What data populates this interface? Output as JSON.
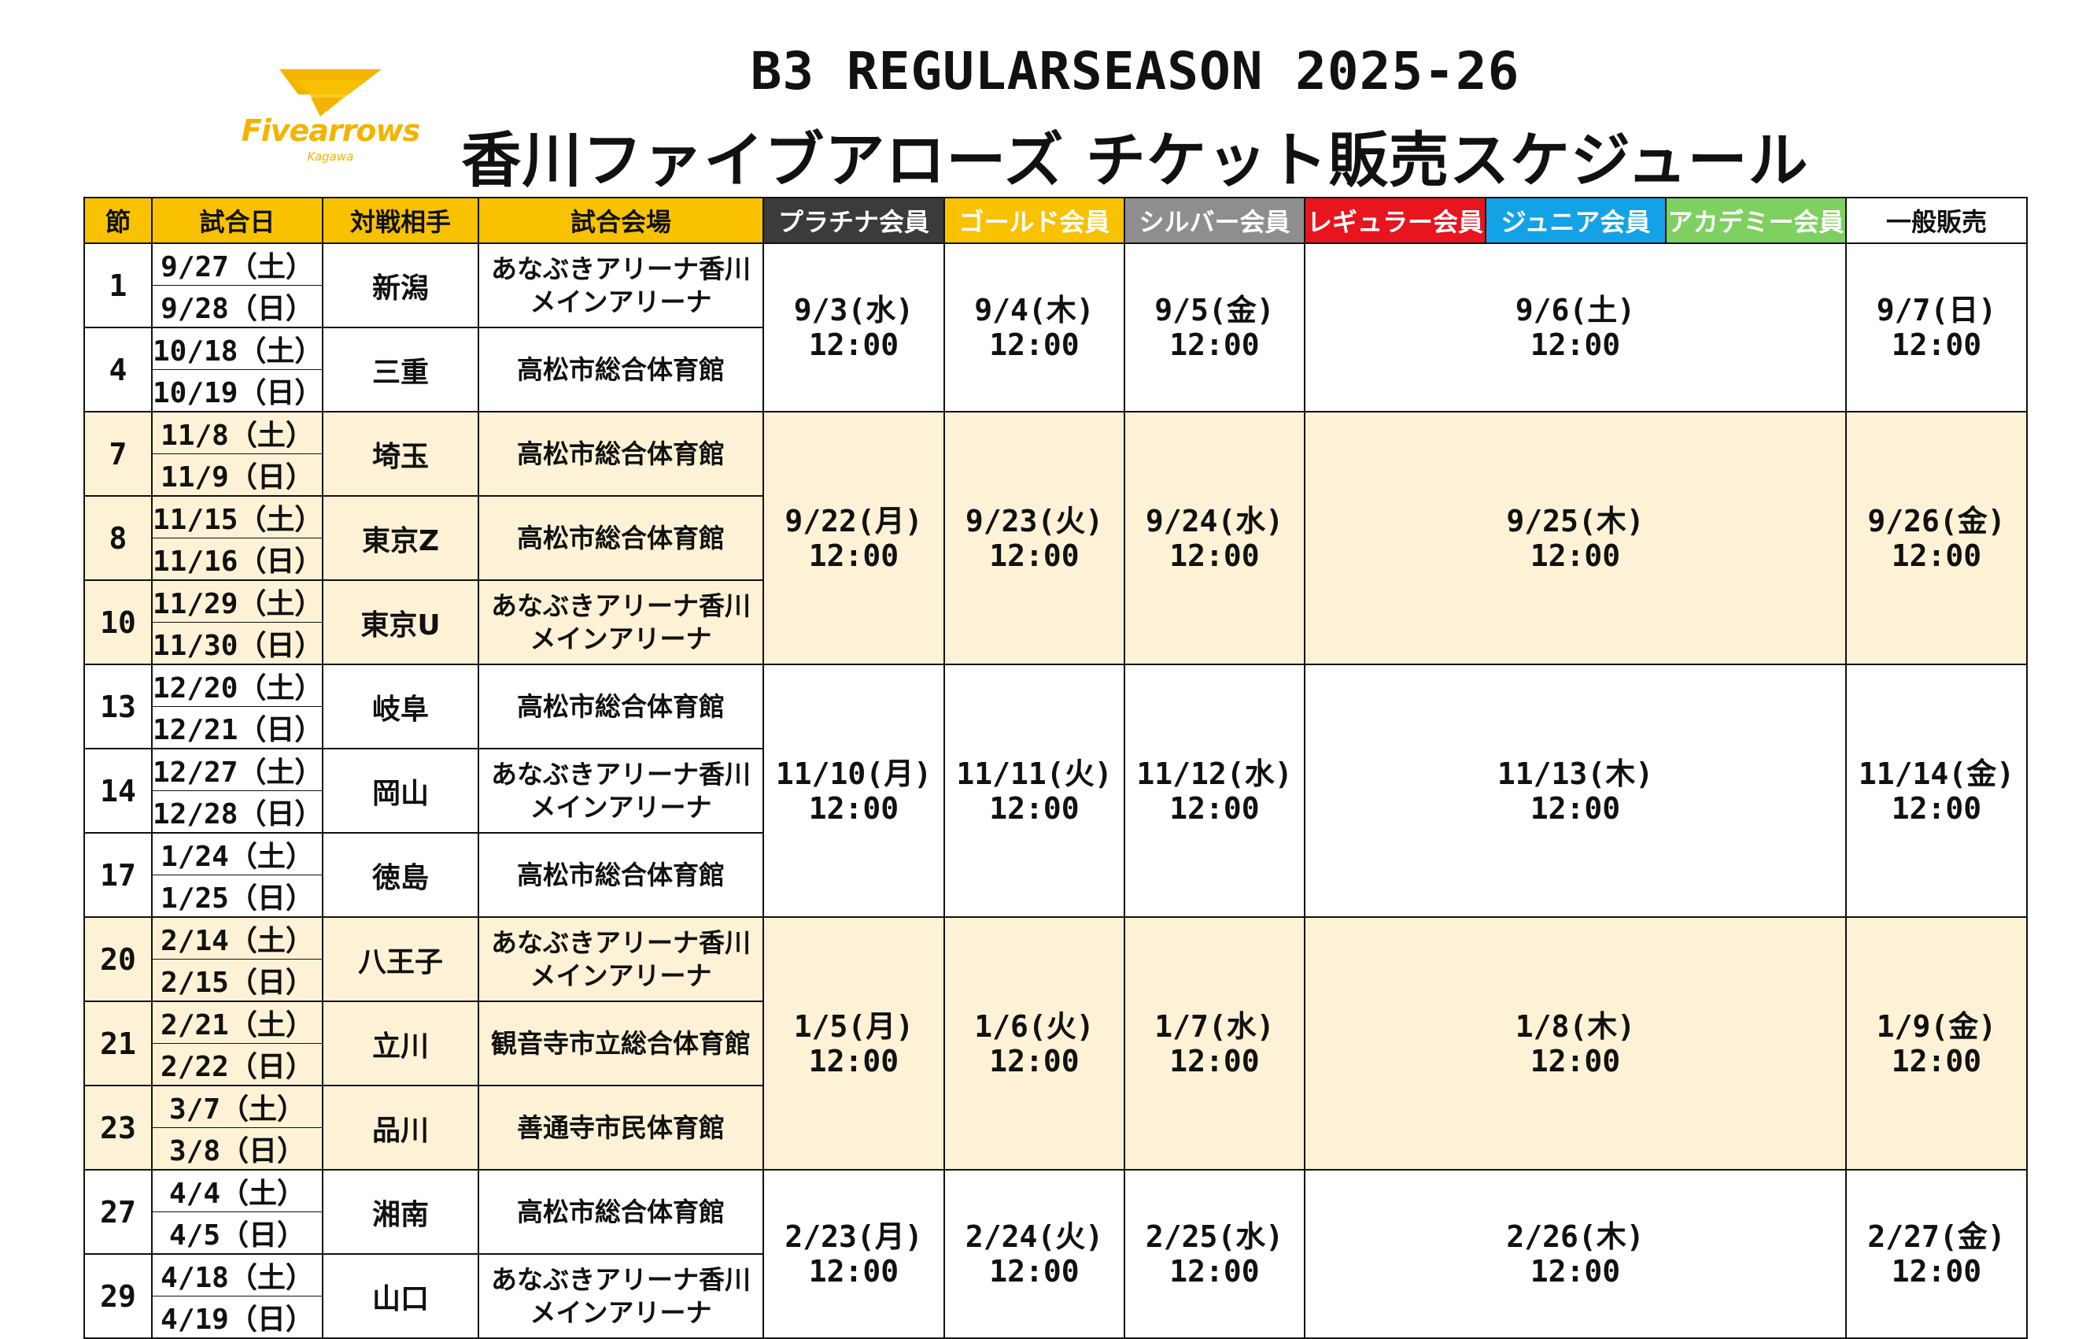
{
  "logo": {
    "name": "Fivearrows",
    "sub": "Kagawa",
    "color": "#f2b400"
  },
  "title_line1": "B3 REGULARSEASON 2025-26",
  "title_line2": "香川ファイブアローズ チケット販売スケジュール",
  "headers": [
    "節",
    "試合日",
    "対戦相手",
    "試合会場",
    "プラチナ会員",
    "ゴールド会員",
    "シルバー会員",
    "レギュラー会員",
    "ジュニア会員",
    "アカデミー会員",
    "一般販売"
  ],
  "header_colors": {
    "primary": "#f8c200",
    "platinum": "#3b3b3b",
    "gold": "#f8c200",
    "silver": "#8e8e8e",
    "regular": "#e8141e",
    "junior": "#14a2e6",
    "academy": "#7ed061",
    "general": "#ffffff",
    "alt_row": "#fdf2d6"
  },
  "games": [
    {
      "setsu": "1",
      "date1": "9/27（土）",
      "date2": "9/28（日）",
      "opponent": "新潟",
      "venue1": "あなぶきアリーナ香川",
      "venue2": "メインアリーナ"
    },
    {
      "setsu": "4",
      "date1": "10/18（土）",
      "date2": "10/19（日）",
      "opponent": "三重",
      "venue1": "高松市総合体育館",
      "venue2": ""
    },
    {
      "setsu": "7",
      "date1": "11/8（土）",
      "date2": "11/9（日）",
      "opponent": "埼玉",
      "venue1": "高松市総合体育館",
      "venue2": ""
    },
    {
      "setsu": "8",
      "date1": "11/15（土）",
      "date2": "11/16（日）",
      "opponent": "東京Z",
      "venue1": "高松市総合体育館",
      "venue2": ""
    },
    {
      "setsu": "10",
      "date1": "11/29（土）",
      "date2": "11/30（日）",
      "opponent": "東京U",
      "venue1": "あなぶきアリーナ香川",
      "venue2": "メインアリーナ"
    },
    {
      "setsu": "13",
      "date1": "12/20（土）",
      "date2": "12/21（日）",
      "opponent": "岐阜",
      "venue1": "高松市総合体育館",
      "venue2": ""
    },
    {
      "setsu": "14",
      "date1": "12/27（土）",
      "date2": "12/28（日）",
      "opponent": "岡山",
      "venue1": "あなぶきアリーナ香川",
      "venue2": "メインアリーナ"
    },
    {
      "setsu": "17",
      "date1": "1/24（土）",
      "date2": "1/25（日）",
      "opponent": "徳島",
      "venue1": "高松市総合体育館",
      "venue2": ""
    },
    {
      "setsu": "20",
      "date1": "2/14（土）",
      "date2": "2/15（日）",
      "opponent": "八王子",
      "venue1": "あなぶきアリーナ香川",
      "venue2": "メインアリーナ"
    },
    {
      "setsu": "21",
      "date1": "2/21（土）",
      "date2": "2/22（日）",
      "opponent": "立川",
      "venue1": "観音寺市立総合体育館",
      "venue2": ""
    },
    {
      "setsu": "23",
      "date1": "3/7（土）",
      "date2": "3/8（日）",
      "opponent": "品川",
      "venue1": "善通寺市民体育館",
      "venue2": ""
    },
    {
      "setsu": "27",
      "date1": "4/4（土）",
      "date2": "4/5（日）",
      "opponent": "湘南",
      "venue1": "高松市総合体育館",
      "venue2": ""
    },
    {
      "setsu": "29",
      "date1": "4/18（土）",
      "date2": "4/19（日）",
      "opponent": "山口",
      "venue1": "あなぶきアリーナ香川",
      "venue2": "メインアリーナ"
    }
  ],
  "sales_time": "12:00",
  "sales": [
    {
      "platinum": "9/3(水)",
      "gold": "9/4(木)",
      "silver": "9/5(金)",
      "regular_junior_academy": "9/6(土)",
      "general": "9/7(日)"
    },
    {
      "platinum": "9/22(月)",
      "gold": "9/23(火)",
      "silver": "9/24(水)",
      "regular_junior_academy": "9/25(木)",
      "general": "9/26(金)"
    },
    {
      "platinum": "11/10(月)",
      "gold": "11/11(火)",
      "silver": "11/12(水)",
      "regular_junior_academy": "11/13(木)",
      "general": "11/14(金)"
    },
    {
      "platinum": "1/5(月)",
      "gold": "1/6(火)",
      "silver": "1/7(水)",
      "regular_junior_academy": "1/8(木)",
      "general": "1/9(金)"
    },
    {
      "platinum": "2/23(月)",
      "gold": "2/24(火)",
      "silver": "2/25(水)",
      "regular_junior_academy": "2/26(木)",
      "general": "2/27(金)"
    }
  ]
}
